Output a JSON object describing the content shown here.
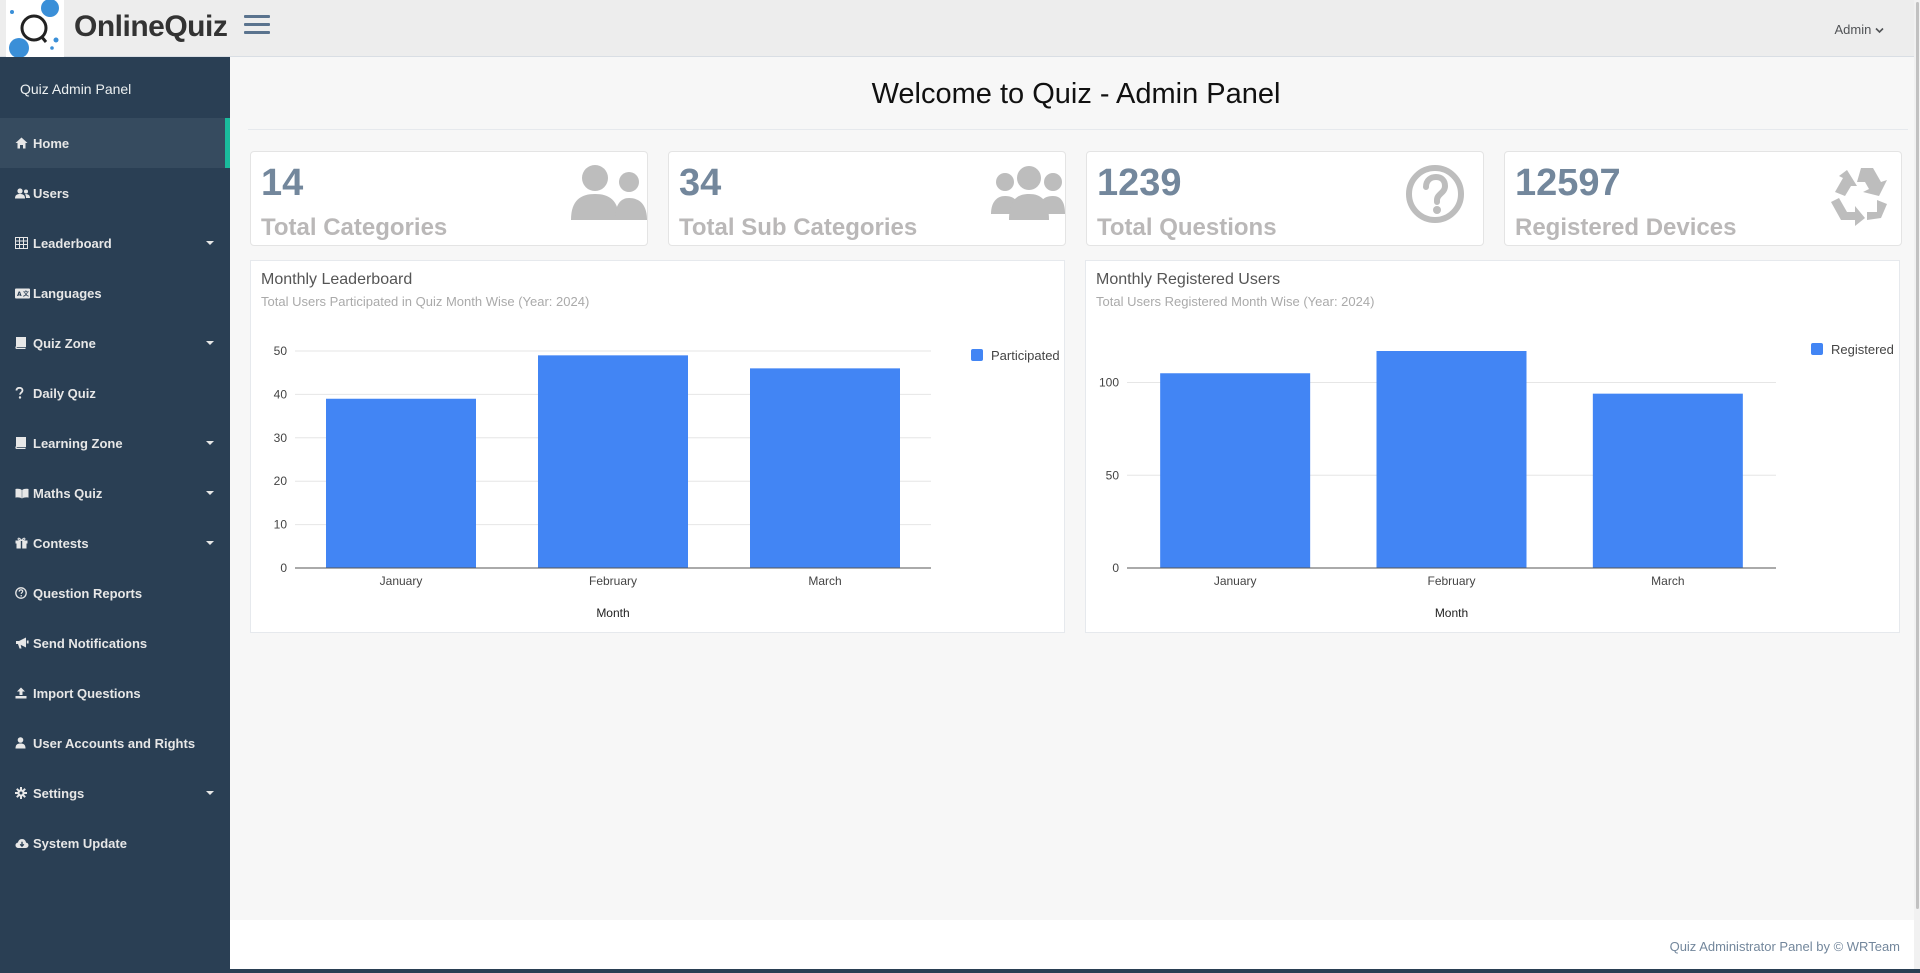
{
  "brand": {
    "logo_text": "Online Quiz",
    "name": "OnlineQuiz"
  },
  "header": {
    "user_menu": "Admin"
  },
  "sidebar": {
    "panel_title": "Quiz Admin Panel",
    "items": [
      {
        "label": "Home",
        "icon": "home-icon",
        "active": true
      },
      {
        "label": "Users",
        "icon": "users-icon"
      },
      {
        "label": "Leaderboard",
        "icon": "table-icon",
        "dropdown": true
      },
      {
        "label": "Languages",
        "icon": "language-icon"
      },
      {
        "label": "Quiz Zone",
        "icon": "book-icon",
        "dropdown": true
      },
      {
        "label": "Daily Quiz",
        "icon": "question-mark-icon"
      },
      {
        "label": "Learning Zone",
        "icon": "book-icon",
        "dropdown": true
      },
      {
        "label": "Maths Quiz",
        "icon": "open-book-icon",
        "dropdown": true
      },
      {
        "label": "Contests",
        "icon": "gift-icon",
        "dropdown": true
      },
      {
        "label": "Question Reports",
        "icon": "question-circle-icon"
      },
      {
        "label": "Send Notifications",
        "icon": "bullhorn-icon"
      },
      {
        "label": "Import Questions",
        "icon": "upload-icon"
      },
      {
        "label": "User Accounts and Rights",
        "icon": "user-icon"
      },
      {
        "label": "Settings",
        "icon": "gear-icon",
        "dropdown": true
      },
      {
        "label": "System Update",
        "icon": "cloud-download-icon"
      }
    ]
  },
  "page": {
    "title": "Welcome to Quiz - Admin Panel"
  },
  "stats": [
    {
      "value": "14",
      "label": "Total Categories",
      "icon": "users-icon"
    },
    {
      "value": "34",
      "label": "Total Sub Categories",
      "icon": "users-group-icon"
    },
    {
      "value": "1239",
      "label": "Total Questions",
      "icon": "question-circle-icon"
    },
    {
      "value": "12597",
      "label": "Registered Devices",
      "icon": "recycle-icon"
    }
  ],
  "charts": [
    {
      "title": "Monthly Leaderboard",
      "subtitle": "Total Users Participated in Quiz Month Wise (Year: 2024)"
    },
    {
      "title": "Monthly Registered Users",
      "subtitle": "Total Users Registered Month Wise (Year: 2024)"
    }
  ],
  "chart_data": [
    {
      "type": "bar",
      "title": "Monthly Leaderboard",
      "xlabel": "Month",
      "ylabel": "",
      "categories": [
        "January",
        "February",
        "March"
      ],
      "series": [
        {
          "name": "Participated",
          "values": [
            39,
            49,
            46
          ]
        }
      ],
      "yticks": [
        0,
        10,
        20,
        30,
        40,
        50
      ],
      "ylim": [
        0,
        50
      ],
      "grid": true,
      "legend": "right",
      "color": "#4285f4"
    },
    {
      "type": "bar",
      "title": "Monthly Registered Users",
      "xlabel": "Month",
      "ylabel": "",
      "categories": [
        "January",
        "February",
        "March"
      ],
      "series": [
        {
          "name": "Registered",
          "values": [
            105,
            117,
            94
          ]
        }
      ],
      "yticks": [
        0,
        50,
        100
      ],
      "ylim": [
        0,
        117
      ],
      "grid": true,
      "legend": "right",
      "color": "#4285f4"
    }
  ],
  "footer": {
    "text": "Quiz Administrator Panel by © WRTeam"
  }
}
